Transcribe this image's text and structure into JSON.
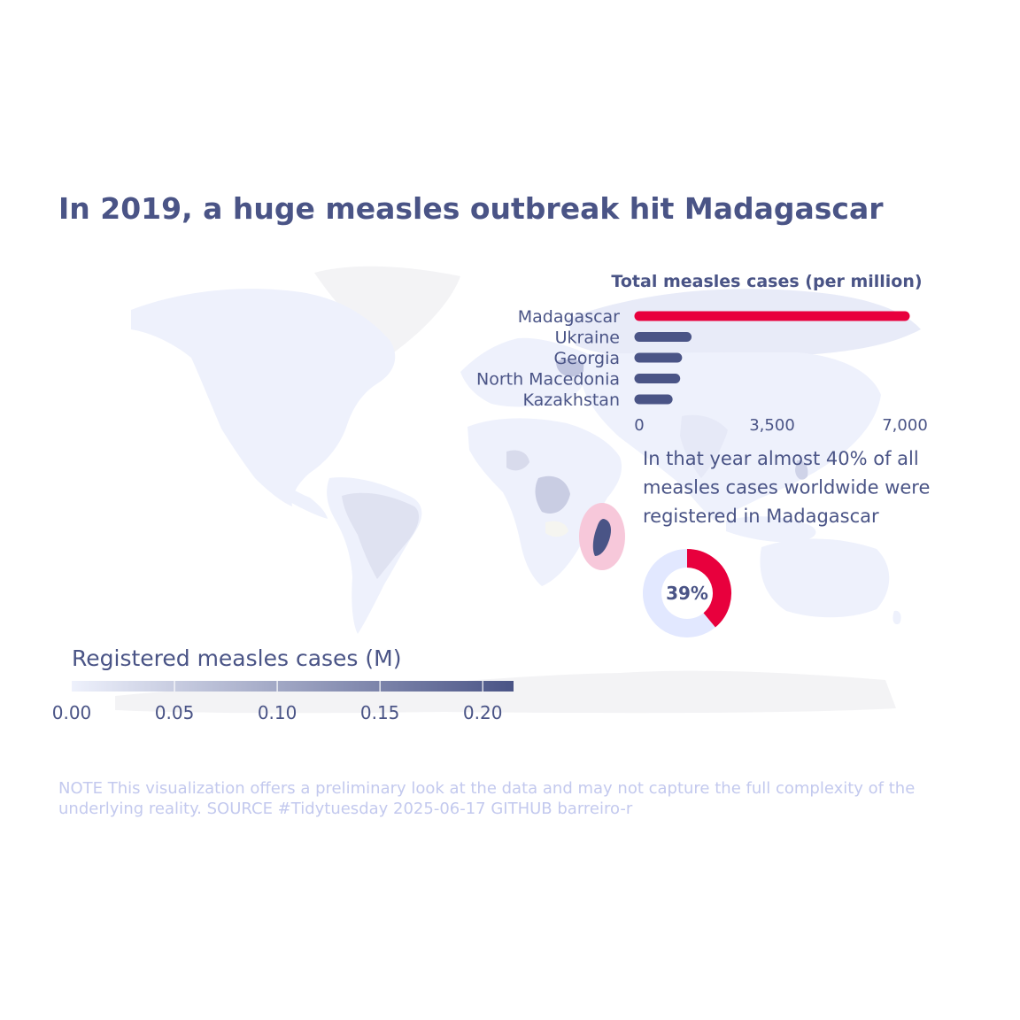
{
  "title": "In 2019, a huge measles outbreak hit Madagascar",
  "caption": "NOTE This visualization offers a preliminary look at the data and may not capture the full complexity of the underlying reality. SOURCE #Tidytuesday 2025-06-17 GITHUB barreiro-r",
  "annotation_lines": [
    "In that year almost 40% of all",
    "measles cases worldwide were",
    "registered in Madagascar"
  ],
  "colors": {
    "text": "#4a5486",
    "highlight": "#e8003d",
    "bar": "#4a5486",
    "donut_rest": "#e2e8ff",
    "madagascar_halo": "#f7c8da",
    "map_land": "#eef1fc",
    "map_antarctica": "#f3f3f5",
    "caption": "#c3c9ee"
  },
  "chart_data": [
    {
      "type": "bar",
      "orientation": "horizontal",
      "title": "Total measles cases (per million)",
      "categories": [
        "Madagascar",
        "Ukraine",
        "Georgia",
        "North Macedonia",
        "Kazakhstan"
      ],
      "values": [
        7000,
        1250,
        1000,
        950,
        750
      ],
      "highlight": "Madagascar",
      "xlim": [
        0,
        7000
      ],
      "xticks": [
        0,
        3500,
        7000
      ],
      "xtick_labels": [
        "0",
        "3,500",
        "7,000"
      ]
    },
    {
      "type": "pie",
      "subtype": "donut",
      "center_label": "39%",
      "slices": [
        {
          "label": "Madagascar",
          "value": 39
        },
        {
          "label": "Rest of world",
          "value": 61
        }
      ]
    },
    {
      "type": "heatmap",
      "subtype": "choropleth-map",
      "legend_title": "Registered measles cases (M)",
      "scale_range": [
        0,
        0.215
      ],
      "ticks": [
        0,
        0.05,
        0.1,
        0.15,
        0.2
      ],
      "tick_labels": [
        "0.00",
        "0.05",
        "0.10",
        "0.15",
        "0.20"
      ],
      "color_low": "#eef1fc",
      "color_high": "#4a5486",
      "highlight": "Madagascar",
      "shaded_regions": [
        {
          "name": "Madagascar",
          "value": 0.21
        },
        {
          "name": "Brazil",
          "value": 0.02
        },
        {
          "name": "Democratic Republic of the Congo",
          "value": 0.05
        },
        {
          "name": "Nigeria",
          "value": 0.04
        },
        {
          "name": "India",
          "value": 0.01
        },
        {
          "name": "Ukraine",
          "value": 0.06
        },
        {
          "name": "Philippines",
          "value": 0.04
        },
        {
          "name": "Russia",
          "value": 0.01
        }
      ]
    }
  ]
}
